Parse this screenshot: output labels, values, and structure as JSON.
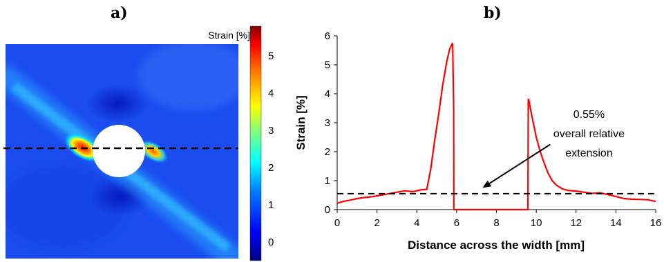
{
  "panels": {
    "a_label": "a)",
    "b_label": "b)"
  },
  "colorbar": {
    "title": "Strain [%]",
    "ticks": [
      "0",
      "1",
      "2",
      "3",
      "4",
      "5"
    ],
    "range": [
      -0.5,
      5.8
    ]
  },
  "chart_data": [
    {
      "type": "heatmap",
      "panel": "a)",
      "colorbar_label": "Strain [%]",
      "colorbar_ticks": [
        0,
        1,
        2,
        3,
        4,
        5
      ],
      "description_features": {
        "hole": "circular",
        "measurement_line": "horizontal dashed line through hole center"
      }
    },
    {
      "type": "line",
      "panel": "b)",
      "xlabel": "Distance across the width [mm]",
      "ylabel": "Strain [%]",
      "xlim": [
        0,
        16
      ],
      "ylim": [
        0,
        6
      ],
      "xticks": [
        0,
        2,
        4,
        6,
        8,
        10,
        12,
        14,
        16
      ],
      "yticks": [
        0,
        1,
        2,
        3,
        4,
        5,
        6
      ],
      "series": [
        {
          "color": "#ff0000",
          "x": [
            0,
            0.3,
            0.6,
            1.0,
            1.4,
            1.8,
            2.2,
            2.6,
            3.0,
            3.4,
            3.8,
            4.2,
            4.5,
            4.7,
            4.9,
            5.1,
            5.3,
            5.5,
            5.65,
            5.8,
            5.85,
            5.86,
            6.5,
            7.5,
            8.5,
            9.5,
            9.58,
            9.6,
            9.62,
            9.7,
            9.85,
            10.0,
            10.2,
            10.4,
            10.6,
            10.8,
            11.0,
            11.3,
            11.6,
            12.0,
            12.4,
            12.8,
            13.2,
            13.6,
            14.0,
            14.4,
            14.8,
            15.2,
            15.6,
            16.0
          ],
          "y": [
            0.22,
            0.28,
            0.32,
            0.38,
            0.42,
            0.45,
            0.5,
            0.55,
            0.6,
            0.65,
            0.62,
            0.68,
            0.7,
            1.4,
            2.4,
            3.3,
            4.3,
            5.1,
            5.55,
            5.75,
            3.5,
            0.0,
            0.0,
            0.0,
            0.0,
            0.0,
            0.0,
            3.8,
            3.8,
            3.5,
            3.0,
            2.5,
            2.0,
            1.6,
            1.25,
            1.0,
            0.85,
            0.72,
            0.66,
            0.64,
            0.6,
            0.56,
            0.58,
            0.52,
            0.45,
            0.38,
            0.36,
            0.35,
            0.34,
            0.28
          ]
        },
        {
          "color": "#000000",
          "style": "dashed",
          "x": [
            0,
            16
          ],
          "y": [
            0.55,
            0.55
          ]
        }
      ],
      "annotations": {
        "value_text": "0.55%",
        "line1": "overall relative",
        "line2": "extension",
        "arrow_from": [
          10.7,
          2.25
        ],
        "arrow_to": [
          7.3,
          0.75
        ]
      }
    }
  ]
}
